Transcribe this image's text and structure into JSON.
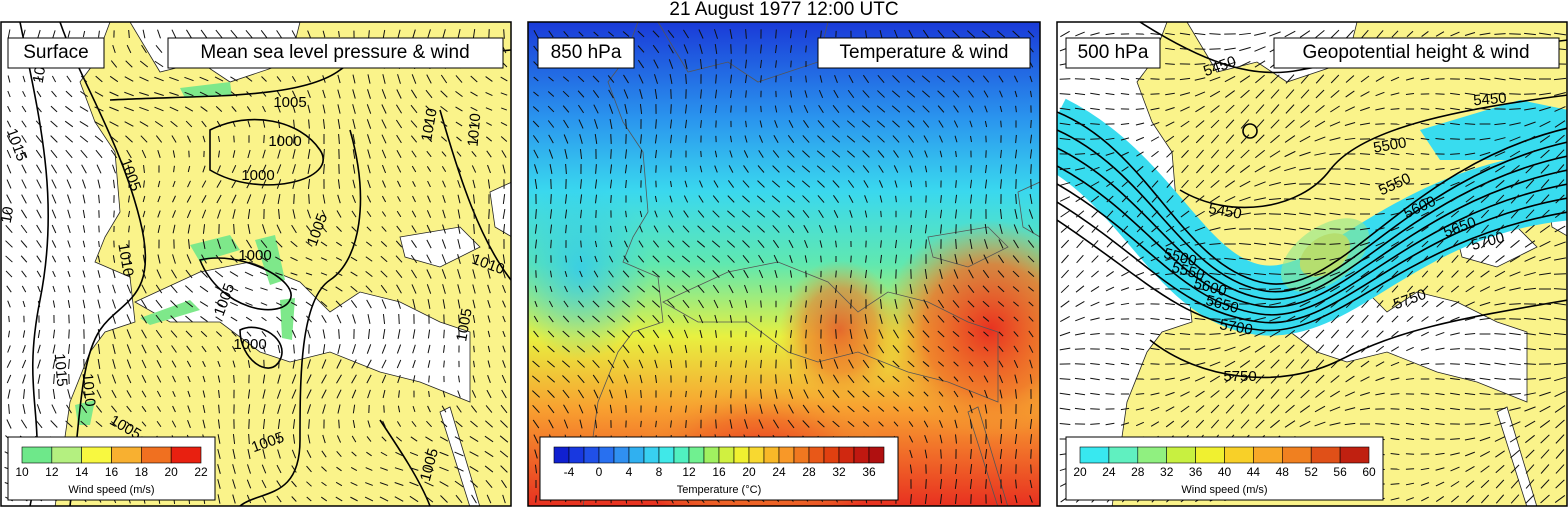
{
  "title": "21 August 1977 12:00 UTC",
  "panels": [
    {
      "level": "Surface",
      "field": "Mean sea level pressure & wind",
      "colorbar": {
        "ticks": [
          10,
          12,
          14,
          16,
          18,
          20,
          22
        ],
        "label": "Wind speed (m/s)"
      },
      "contour_labels": [
        "1005",
        "1000",
        "1000",
        "1000",
        "1000",
        "1005",
        "1010",
        "1015",
        "1015",
        "1010",
        "1005",
        "1005",
        "1005",
        "1010",
        "1005",
        "1010",
        "1010",
        "1005",
        "1005",
        "10",
        "10"
      ]
    },
    {
      "level": "850 hPa",
      "field": "Temperature & wind",
      "colorbar": {
        "ticks": [
          -4,
          0,
          4,
          8,
          12,
          16,
          20,
          24,
          28,
          32,
          36
        ],
        "label": "Temperature (°C)"
      },
      "contour_labels": []
    },
    {
      "level": "500 hPa",
      "field": "Geopotential height & wind",
      "colorbar": {
        "ticks": [
          20,
          24,
          28,
          32,
          36,
          40,
          44,
          48,
          52,
          56,
          60
        ],
        "label": "Wind speed (m/s)"
      },
      "contour_labels": [
        "5450",
        "5450",
        "5500",
        "5550",
        "5600",
        "5650",
        "5700",
        "5750",
        "5450",
        "5500",
        "5550",
        "5600",
        "5650",
        "5700",
        "5750"
      ]
    }
  ]
}
